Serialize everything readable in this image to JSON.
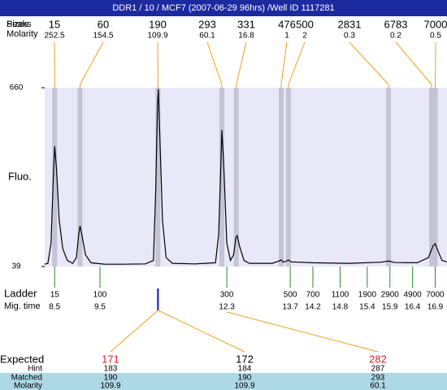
{
  "header": {
    "title": "DDR1 / 10 / MCF7 (2007-06-29 96hrs) /Well ID 1117281"
  },
  "chart_data": {
    "type": "line",
    "y_label": "Fluo.",
    "ylim": [
      39,
      660
    ],
    "yticks": [
      39,
      660
    ],
    "xlim": [
      8.28,
      17.16
    ],
    "x": [
      8.28,
      8.35,
      8.42,
      8.47,
      8.5,
      8.54,
      8.6,
      8.68,
      8.78,
      8.9,
      8.98,
      9.03,
      9.06,
      9.1,
      9.18,
      9.3,
      9.6,
      10.0,
      10.5,
      10.68,
      10.73,
      10.77,
      10.79,
      10.82,
      10.88,
      10.96,
      11.1,
      11.6,
      12.05,
      12.12,
      12.17,
      12.19,
      12.23,
      12.3,
      12.38,
      12.45,
      12.5,
      12.53,
      12.58,
      12.68,
      12.8,
      13.3,
      13.45,
      13.5,
      13.55,
      13.62,
      13.66,
      13.72,
      14.2,
      15.0,
      15.7,
      15.87,
      16.0,
      16.5,
      16.75,
      16.85,
      16.9,
      16.97,
      17.05,
      17.16
    ],
    "series": [
      {
        "color": "#000000",
        "values": [
          47,
          50,
          120,
          350,
          457,
          380,
          200,
          100,
          60,
          50,
          70,
          150,
          180,
          150,
          80,
          52,
          47,
          47,
          48,
          60,
          300,
          600,
          655,
          500,
          200,
          70,
          50,
          48,
          52,
          150,
          400,
          513,
          400,
          120,
          60,
          80,
          140,
          146,
          110,
          60,
          50,
          50,
          58,
          62,
          54,
          58,
          62,
          55,
          52,
          50,
          54,
          58,
          53,
          52,
          70,
          110,
          118,
          90,
          60,
          55
        ]
      }
    ],
    "peak_row_labels": {
      "overlap": "Peaks",
      "size": "Sizes",
      "molarity": "Molarity"
    },
    "peaks": [
      {
        "time": 8.5,
        "size": 15,
        "molarity": 252.5
      },
      {
        "time": 9.06,
        "size": 60,
        "molarity": 154.5
      },
      {
        "time": 10.78,
        "size": 190,
        "molarity": 109.9
      },
      {
        "time": 12.19,
        "size": 293,
        "molarity": 60.1
      },
      {
        "time": 12.51,
        "size": 331,
        "molarity": 16.8
      },
      {
        "time": 13.5,
        "size": 476,
        "molarity": 1
      },
      {
        "time": 13.66,
        "size": 500,
        "molarity": 2
      },
      {
        "time": 15.87,
        "size": 2831,
        "molarity": 0.3
      },
      {
        "time": 16.82,
        "size": 6783,
        "molarity": 0.2
      },
      {
        "time": 16.9,
        "size": 7000,
        "molarity": 0.5
      }
    ],
    "ladder_label": "Ladder",
    "mig_label": "Mig. time",
    "ladder": [
      {
        "size": 15,
        "time": 8.5
      },
      {
        "size": 100,
        "time": 9.5
      },
      {
        "size": 300,
        "time": 12.3
      },
      {
        "size": 500,
        "time": 13.7
      },
      {
        "size": 700,
        "time": 14.2
      },
      {
        "size": 1100,
        "time": 14.8
      },
      {
        "size": 1900,
        "time": 15.4
      },
      {
        "size": 2900,
        "time": 15.9
      },
      {
        "size": 4900,
        "time": 16.4
      },
      {
        "size": 7000,
        "time": 16.9
      }
    ]
  },
  "expected": {
    "labels": {
      "expected": "Expected",
      "hint": "Hint",
      "matched": "Matched",
      "molarity": "Molarity"
    },
    "columns": [
      {
        "expected": 171,
        "color": "#e02020",
        "hint": 183,
        "matched": 190,
        "molarity": 109.9
      },
      {
        "expected": 172,
        "color": "#000000",
        "hint": 184,
        "matched": 190,
        "molarity": 109.9
      },
      {
        "expected": 282,
        "color": "#e02020",
        "hint": 287,
        "matched": 293,
        "molarity": 60.1
      }
    ]
  }
}
